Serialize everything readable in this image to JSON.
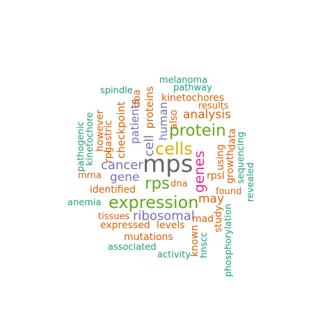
{
  "palette": {
    "teal": "#1b9e77",
    "orange": "#d95f02",
    "purple": "#7570b3",
    "magenta": "#e7298a",
    "green": "#66a61e",
    "yellow": "#e6ab02",
    "gray": "#666666"
  },
  "words": [
    {
      "text": "mps",
      "color": "gray"
    },
    {
      "text": "cells",
      "color": "yellow"
    },
    {
      "text": "protein",
      "color": "green"
    },
    {
      "text": "expression",
      "color": "green"
    },
    {
      "text": "genes",
      "color": "magenta"
    },
    {
      "text": "rps",
      "color": "green"
    },
    {
      "text": "cancer",
      "color": "purple"
    },
    {
      "text": "ribosomal",
      "color": "purple"
    },
    {
      "text": "cell",
      "color": "purple"
    },
    {
      "text": "human",
      "color": "purple"
    },
    {
      "text": "patients",
      "color": "purple"
    },
    {
      "text": "gene",
      "color": "purple"
    },
    {
      "text": "analysis",
      "color": "orange"
    },
    {
      "text": "may",
      "color": "orange"
    },
    {
      "text": "proteins",
      "color": "orange"
    },
    {
      "text": "checkpoint",
      "color": "orange"
    },
    {
      "text": "kinetochores",
      "color": "orange"
    },
    {
      "text": "identified",
      "color": "orange"
    },
    {
      "text": "expressed",
      "color": "orange"
    },
    {
      "text": "levels",
      "color": "orange"
    },
    {
      "text": "mutations",
      "color": "orange"
    },
    {
      "text": "results",
      "color": "orange"
    },
    {
      "text": "also",
      "color": "orange"
    },
    {
      "text": "dna",
      "color": "orange"
    },
    {
      "text": "rpsl",
      "color": "orange"
    },
    {
      "text": "found",
      "color": "orange"
    },
    {
      "text": "mad",
      "color": "orange"
    },
    {
      "text": "tissues",
      "color": "orange"
    },
    {
      "text": "mrna",
      "color": "orange"
    },
    {
      "text": "using",
      "color": "orange"
    },
    {
      "text": "growth",
      "color": "orange"
    },
    {
      "text": "data",
      "color": "orange"
    },
    {
      "text": "study",
      "color": "orange"
    },
    {
      "text": "known",
      "color": "orange"
    },
    {
      "text": "however",
      "color": "orange"
    },
    {
      "text": "gastric",
      "color": "orange"
    },
    {
      "text": "rpl",
      "color": "orange"
    },
    {
      "text": "dba",
      "color": "orange"
    },
    {
      "text": "melanoma",
      "color": "teal"
    },
    {
      "text": "pathway",
      "color": "teal"
    },
    {
      "text": "spindle",
      "color": "teal"
    },
    {
      "text": "pathogenic",
      "color": "teal"
    },
    {
      "text": "kinetochore",
      "color": "teal"
    },
    {
      "text": "anemia",
      "color": "teal"
    },
    {
      "text": "associated",
      "color": "teal"
    },
    {
      "text": "activity",
      "color": "teal"
    },
    {
      "text": "hnscc",
      "color": "teal"
    },
    {
      "text": "phosphorylation",
      "color": "teal"
    },
    {
      "text": "sequencing",
      "color": "teal"
    },
    {
      "text": "revealed",
      "color": "teal"
    }
  ]
}
